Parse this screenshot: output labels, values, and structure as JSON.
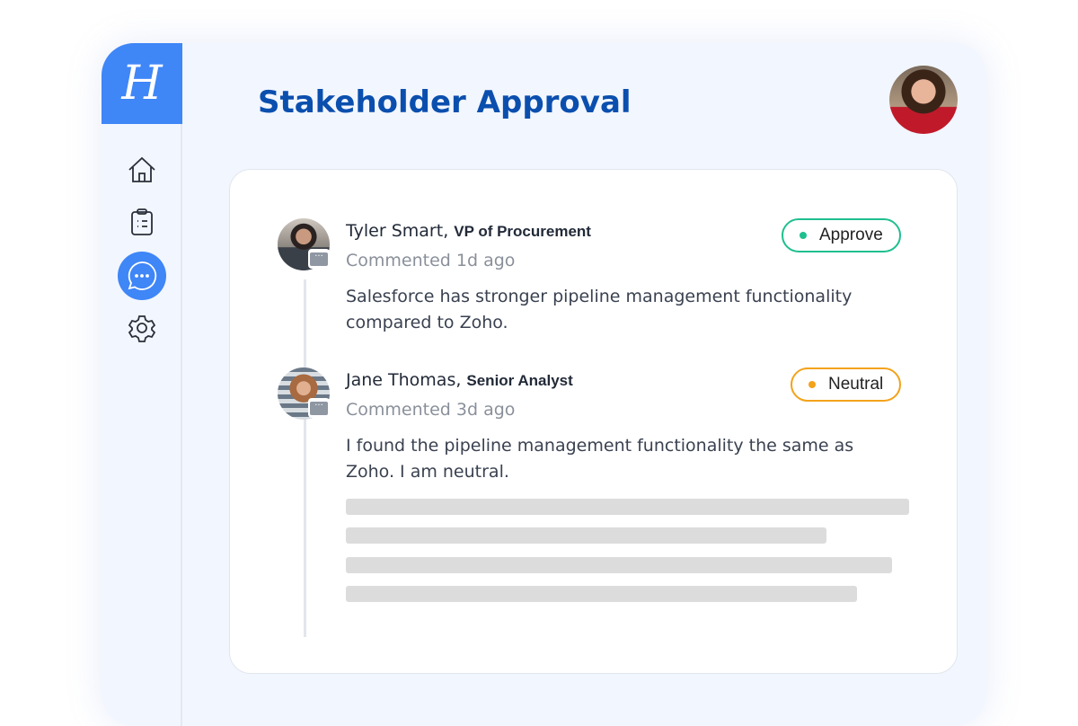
{
  "logo": "H",
  "title": "Stakeholder Approval",
  "sidebar": {
    "items": [
      {
        "icon": "home-icon"
      },
      {
        "icon": "clipboard-icon"
      },
      {
        "icon": "chat-icon",
        "active": true
      },
      {
        "icon": "gear-icon"
      }
    ]
  },
  "comments": [
    {
      "name": "Tyler Smart",
      "role": "VP of Procurement",
      "time": "Commented 1d ago",
      "text": "Salesforce has stronger pipeline management functionality compared to Zoho.",
      "status": "Approve",
      "status_color": "#1fbf8f"
    },
    {
      "name": "Jane Thomas",
      "role": "Senior Analyst",
      "time": "Commented 3d ago",
      "text": "I found the pipeline management functionality the same as Zoho. I am neutral.",
      "status": "Neutral",
      "status_color": "#f3a21a"
    }
  ],
  "accent": "#3f86f7"
}
